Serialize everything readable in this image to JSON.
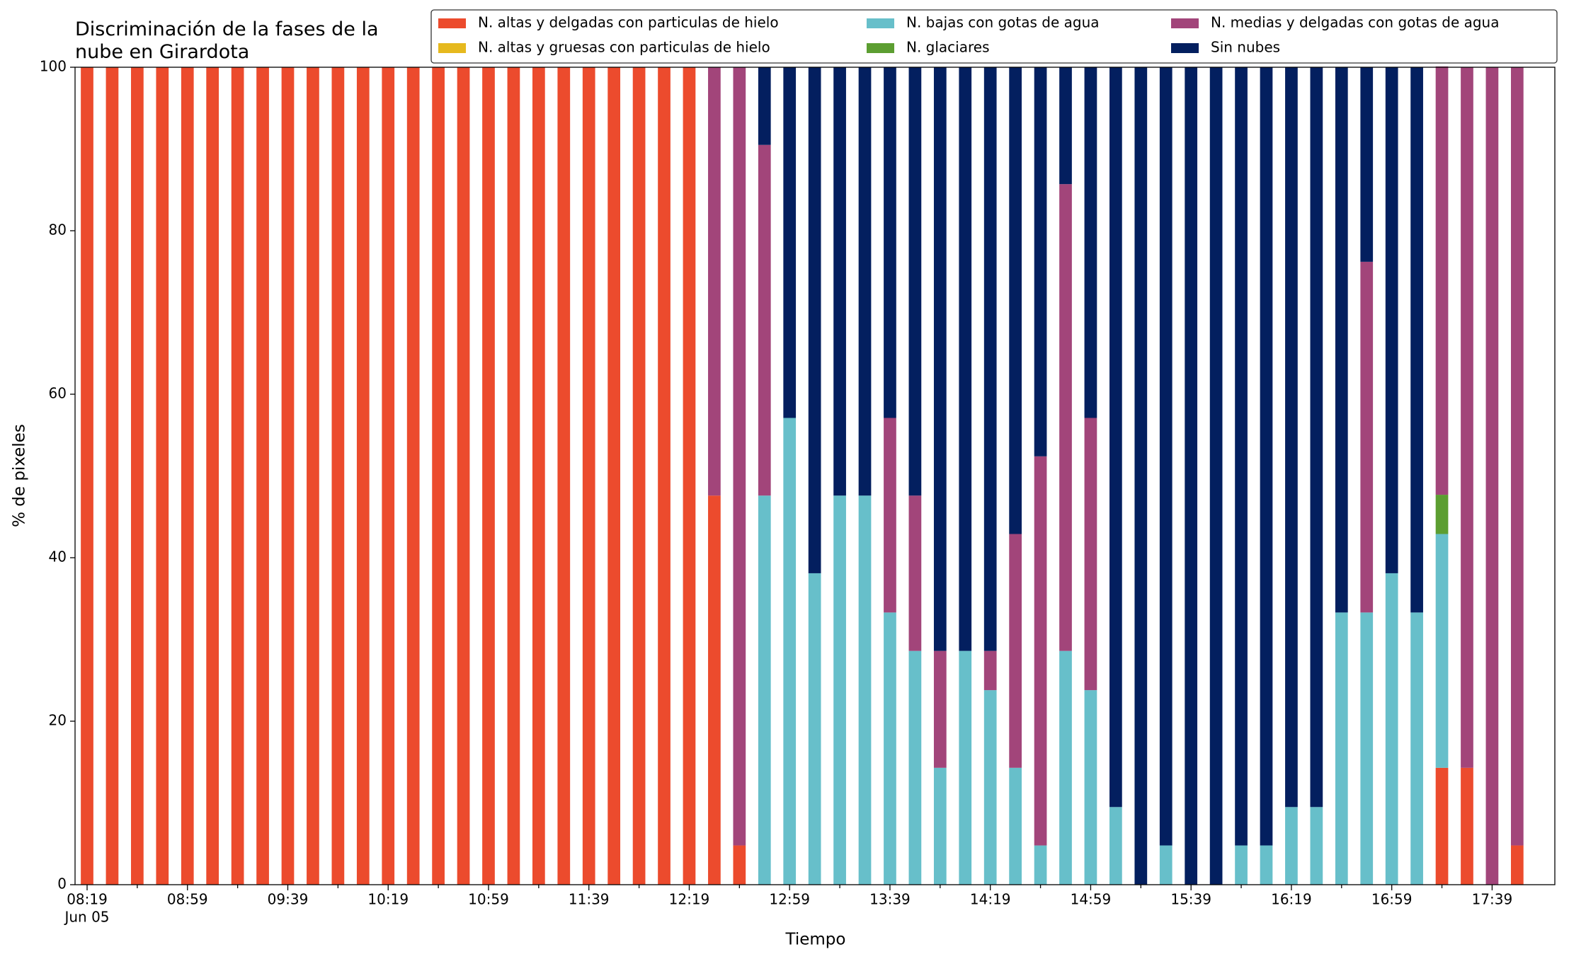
{
  "chart_data": {
    "type": "stacked_bar",
    "title": [
      "Discriminación de la fases de la",
      "nube en Girardota"
    ],
    "x_label": "Tiempo",
    "y_label": "% de pixeles",
    "x_sublabel": "Jun 05",
    "categories": [
      "08:19",
      null,
      null,
      null,
      "08:59",
      null,
      null,
      null,
      "09:39",
      null,
      null,
      null,
      "10:19",
      null,
      null,
      null,
      "10:59",
      null,
      null,
      null,
      "11:39",
      null,
      null,
      null,
      "12:19",
      null,
      null,
      null,
      "12:59",
      null,
      null,
      null,
      "13:39",
      null,
      null,
      null,
      "14:19",
      null,
      null,
      null,
      "14:59",
      null,
      null,
      null,
      "15:39",
      null,
      null,
      null,
      "16:19",
      null,
      null,
      null,
      "16:59",
      null,
      null,
      null,
      "17:39",
      null
    ],
    "ylim": [
      0,
      100
    ],
    "yticks": [
      0,
      20,
      40,
      60,
      80,
      100
    ],
    "legend_position": "top-right",
    "series": [
      {
        "name": "N. altas y delgadas con particulas de hielo",
        "color": "#ec4b2d",
        "values": [
          100,
          100,
          100,
          100,
          100,
          100,
          100,
          100,
          100,
          100,
          100,
          100,
          100,
          100,
          100,
          100,
          100,
          100,
          100,
          100,
          100,
          100,
          100,
          100,
          100,
          47.6,
          4.8,
          0,
          0,
          0,
          0,
          0,
          0,
          0,
          0,
          0,
          0,
          0,
          0,
          0,
          0,
          0,
          0,
          0,
          0,
          0,
          0,
          0,
          0,
          0,
          0,
          0,
          0,
          0,
          14.3,
          14.3,
          0,
          4.8
        ]
      },
      {
        "name": "N. altas y gruesas con particulas de hielo",
        "color": "#e6b91e",
        "values": [
          0,
          0,
          0,
          0,
          0,
          0,
          0,
          0,
          0,
          0,
          0,
          0,
          0,
          0,
          0,
          0,
          0,
          0,
          0,
          0,
          0,
          0,
          0,
          0,
          0,
          0,
          0,
          0,
          0,
          0,
          0,
          0,
          0,
          0,
          0,
          0,
          0,
          0,
          0,
          0,
          0,
          0,
          0,
          0,
          0,
          0,
          0,
          0,
          0,
          0,
          0,
          0,
          0,
          0,
          0,
          0,
          0,
          0
        ]
      },
      {
        "name": "N. bajas con gotas de agua",
        "color": "#67bfca",
        "values": [
          0,
          0,
          0,
          0,
          0,
          0,
          0,
          0,
          0,
          0,
          0,
          0,
          0,
          0,
          0,
          0,
          0,
          0,
          0,
          0,
          0,
          0,
          0,
          0,
          0,
          0,
          0,
          47.6,
          57.1,
          38.1,
          47.6,
          47.6,
          33.3,
          28.6,
          14.3,
          28.6,
          23.8,
          14.3,
          4.8,
          28.6,
          23.8,
          9.5,
          0,
          4.8,
          0,
          0,
          4.8,
          4.8,
          9.5,
          9.5,
          33.3,
          33.3,
          38.1,
          33.3,
          28.6,
          0,
          0,
          0
        ]
      },
      {
        "name": "N. glaciares",
        "color": "#5c9e31",
        "values": [
          0,
          0,
          0,
          0,
          0,
          0,
          0,
          0,
          0,
          0,
          0,
          0,
          0,
          0,
          0,
          0,
          0,
          0,
          0,
          0,
          0,
          0,
          0,
          0,
          0,
          0,
          0,
          0,
          0,
          0,
          0,
          0,
          0,
          0,
          0,
          0,
          0,
          0,
          0,
          0,
          0,
          0,
          0,
          0,
          0,
          0,
          0,
          0,
          0,
          0,
          0,
          0,
          0,
          0,
          4.8,
          0,
          0,
          0
        ]
      },
      {
        "name": "N. medias y delgadas con gotas de agua",
        "color": "#a2457a",
        "values": [
          0,
          0,
          0,
          0,
          0,
          0,
          0,
          0,
          0,
          0,
          0,
          0,
          0,
          0,
          0,
          0,
          0,
          0,
          0,
          0,
          0,
          0,
          0,
          0,
          0,
          52.4,
          95.2,
          42.9,
          0,
          0,
          0,
          0,
          23.8,
          19.0,
          14.3,
          0,
          4.8,
          28.6,
          47.6,
          57.1,
          33.3,
          0,
          0,
          0,
          0,
          0,
          0,
          0,
          0,
          0,
          0,
          42.9,
          0,
          0,
          52.4,
          85.7,
          100,
          95.2
        ]
      },
      {
        "name": "Sin nubes",
        "color": "#031f5f",
        "values": [
          0,
          0,
          0,
          0,
          0,
          0,
          0,
          0,
          0,
          0,
          0,
          0,
          0,
          0,
          0,
          0,
          0,
          0,
          0,
          0,
          0,
          0,
          0,
          0,
          0,
          0,
          0,
          9.5,
          42.9,
          61.9,
          52.4,
          52.4,
          42.9,
          52.4,
          71.4,
          71.4,
          71.4,
          57.1,
          47.6,
          14.3,
          42.9,
          90.5,
          100,
          95.2,
          100,
          100,
          95.2,
          95.2,
          90.5,
          90.5,
          66.7,
          23.8,
          61.9,
          66.7,
          0,
          0,
          0,
          0
        ]
      }
    ]
  }
}
